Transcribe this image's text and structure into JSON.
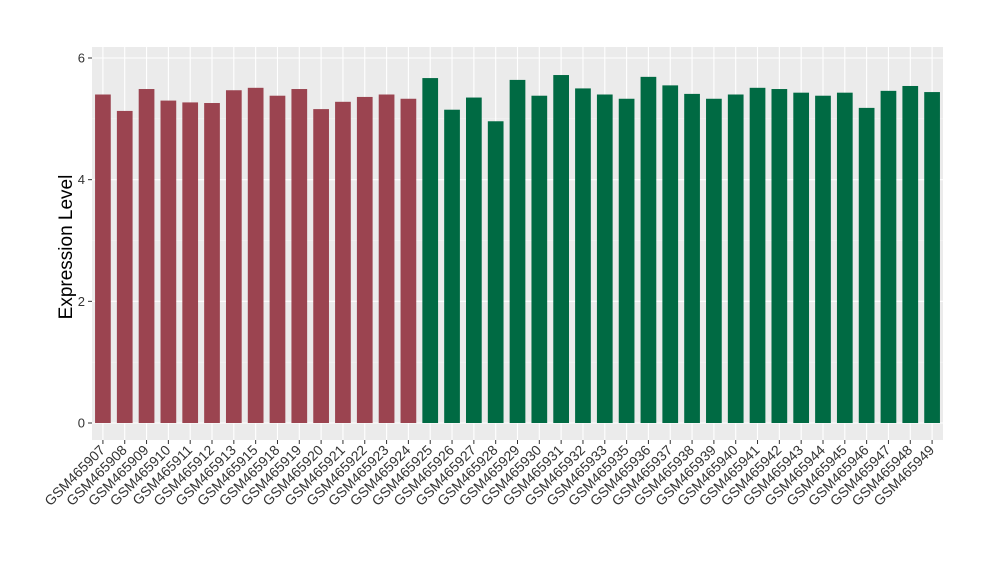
{
  "chart_data": {
    "type": "bar",
    "title": "",
    "xlabel": "",
    "ylabel": "Expression Level",
    "ylim": [
      0,
      6
    ],
    "yticks": [
      0,
      2,
      4,
      6
    ],
    "grid": true,
    "panel_color": "#ebebeb",
    "categories": [
      "GSM465907",
      "GSM465908",
      "GSM465909",
      "GSM465910",
      "GSM465911",
      "GSM465912",
      "GSM465913",
      "GSM465915",
      "GSM465918",
      "GSM465919",
      "GSM465920",
      "GSM465921",
      "GSM465922",
      "GSM465923",
      "GSM465924",
      "GSM465925",
      "GSM465926",
      "GSM465927",
      "GSM465928",
      "GSM465929",
      "GSM465930",
      "GSM465931",
      "GSM465932",
      "GSM465933",
      "GSM465935",
      "GSM465936",
      "GSM465937",
      "GSM465938",
      "GSM465939",
      "GSM465940",
      "GSM465941",
      "GSM465942",
      "GSM465943",
      "GSM465944",
      "GSM465945",
      "GSM465946",
      "GSM465947",
      "GSM465948",
      "GSM465949"
    ],
    "values": [
      5.4,
      5.13,
      5.49,
      5.3,
      5.27,
      5.26,
      5.47,
      5.51,
      5.38,
      5.49,
      5.16,
      5.28,
      5.36,
      5.4,
      5.33,
      5.67,
      5.15,
      5.35,
      4.96,
      5.64,
      5.38,
      5.72,
      5.5,
      5.4,
      5.33,
      5.69,
      5.55,
      5.41,
      5.33,
      5.4,
      5.51,
      5.49,
      5.43,
      5.38,
      5.43,
      5.18,
      5.46,
      5.54,
      5.44
    ],
    "colors": [
      "#9b4450",
      "#9b4450",
      "#9b4450",
      "#9b4450",
      "#9b4450",
      "#9b4450",
      "#9b4450",
      "#9b4450",
      "#9b4450",
      "#9b4450",
      "#9b4450",
      "#9b4450",
      "#9b4450",
      "#9b4450",
      "#9b4450",
      "#006a43",
      "#006a43",
      "#006a43",
      "#006a43",
      "#006a43",
      "#006a43",
      "#006a43",
      "#006a43",
      "#006a43",
      "#006a43",
      "#006a43",
      "#006a43",
      "#006a43",
      "#006a43",
      "#006a43",
      "#006a43",
      "#006a43",
      "#006a43",
      "#006a43",
      "#006a43",
      "#006a43",
      "#006a43",
      "#006a43",
      "#006a43"
    ]
  }
}
